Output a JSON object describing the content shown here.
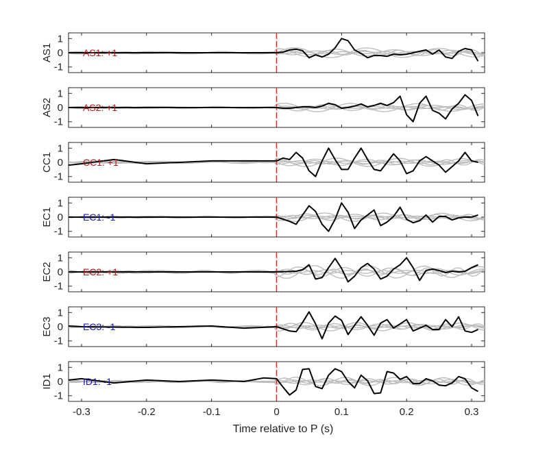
{
  "chart_data": {
    "type": "line",
    "xlabel": "Time relative to P (s)",
    "xlim": [
      -0.32,
      0.32
    ],
    "xticks": [
      -0.3,
      -0.2,
      -0.1,
      0,
      0.1,
      0.2,
      0.3
    ],
    "xtick_labels": [
      "-0.3",
      "-0.2",
      "-0.1",
      "0",
      "0.1",
      "0.2",
      "0.3"
    ],
    "ylim": [
      -1.4,
      1.4
    ],
    "yticks": [
      -1,
      0,
      1
    ],
    "ytick_labels": [
      "-1",
      "0",
      "1"
    ],
    "marker_time": 0,
    "colors": {
      "trace": "#000000",
      "background_traces": "#bdbdbd",
      "marker": "#e8281e",
      "positive": "#b2191b",
      "negative": "#1a1aa8",
      "axes": "#262626"
    },
    "panels": [
      {
        "station": "AS1",
        "annotation": "AS1: +1",
        "polarity": "positive",
        "x": [
          -0.32,
          0.0,
          0.01,
          0.02,
          0.03,
          0.04,
          0.05,
          0.06,
          0.07,
          0.08,
          0.09,
          0.1,
          0.11,
          0.12,
          0.13,
          0.14,
          0.15,
          0.16,
          0.17,
          0.18,
          0.19,
          0.2,
          0.21,
          0.22,
          0.23,
          0.24,
          0.25,
          0.26,
          0.27,
          0.28,
          0.29,
          0.3,
          0.31
        ],
        "y": [
          0.0,
          0.0,
          0.05,
          0.2,
          0.25,
          0.15,
          -0.35,
          -0.15,
          -0.3,
          -0.1,
          0.35,
          1.0,
          0.85,
          0.2,
          -0.05,
          -0.35,
          -0.2,
          -0.2,
          -0.25,
          -0.1,
          -0.15,
          -0.1,
          0.0,
          0.1,
          0.2,
          -0.1,
          0.2,
          -0.3,
          -0.4,
          0.1,
          0.3,
          0.2,
          -0.6
        ],
        "bg_amplitude": 0.35
      },
      {
        "station": "AS2",
        "annotation": "AS2: +1",
        "polarity": "positive",
        "x": [
          -0.32,
          0.0,
          0.01,
          0.02,
          0.03,
          0.04,
          0.05,
          0.06,
          0.07,
          0.08,
          0.09,
          0.1,
          0.11,
          0.12,
          0.13,
          0.14,
          0.15,
          0.16,
          0.17,
          0.18,
          0.19,
          0.2,
          0.21,
          0.22,
          0.23,
          0.24,
          0.25,
          0.26,
          0.27,
          0.28,
          0.29,
          0.3,
          0.31
        ],
        "y": [
          0.0,
          0.0,
          -0.05,
          -0.05,
          0.0,
          0.05,
          0.05,
          0.0,
          0.1,
          0.3,
          0.2,
          -0.05,
          0.0,
          0.1,
          0.25,
          0.05,
          0.15,
          0.3,
          0.15,
          0.35,
          0.8,
          -0.5,
          -1.0,
          0.3,
          0.8,
          -0.2,
          -0.4,
          -0.8,
          -0.1,
          0.3,
          0.9,
          0.5,
          -0.6
        ],
        "bg_amplitude": 0.3
      },
      {
        "station": "CC1",
        "annotation": "CC1: +1",
        "polarity": "positive",
        "x": [
          -0.32,
          -0.3,
          -0.25,
          -0.2,
          -0.1,
          0.0,
          0.01,
          0.02,
          0.03,
          0.04,
          0.05,
          0.06,
          0.07,
          0.08,
          0.09,
          0.1,
          0.11,
          0.12,
          0.13,
          0.14,
          0.15,
          0.16,
          0.17,
          0.18,
          0.19,
          0.2,
          0.21,
          0.22,
          0.23,
          0.24,
          0.25,
          0.26,
          0.27,
          0.28,
          0.29,
          0.3,
          0.31
        ],
        "y": [
          -0.2,
          -0.1,
          0.2,
          -0.1,
          0.1,
          0.1,
          0.3,
          0.2,
          0.7,
          0.3,
          -0.6,
          -1.0,
          0.1,
          1.0,
          0.2,
          -0.5,
          -0.5,
          0.3,
          1.0,
          0.2,
          -0.5,
          -0.6,
          0.0,
          0.6,
          0.1,
          -0.8,
          -0.6,
          0.1,
          0.4,
          0.1,
          -0.2,
          -0.7,
          -0.3,
          0.1,
          0.7,
          0.1,
          0.0
        ],
        "bg_amplitude": 0.3
      },
      {
        "station": "EC1",
        "annotation": "EC1: -1",
        "polarity": "negative",
        "x": [
          -0.32,
          0.0,
          0.01,
          0.02,
          0.03,
          0.04,
          0.05,
          0.06,
          0.07,
          0.08,
          0.09,
          0.1,
          0.11,
          0.12,
          0.13,
          0.14,
          0.15,
          0.16,
          0.17,
          0.18,
          0.19,
          0.2,
          0.21,
          0.22,
          0.23,
          0.24,
          0.25,
          0.26,
          0.27,
          0.28,
          0.29,
          0.3,
          0.31
        ],
        "y": [
          0.0,
          0.0,
          -0.15,
          -0.3,
          -0.5,
          0.15,
          0.8,
          0.4,
          -0.5,
          -1.0,
          -0.15,
          1.0,
          0.35,
          -0.8,
          -0.2,
          0.15,
          0.5,
          -0.6,
          -0.35,
          0.05,
          0.7,
          -0.15,
          -0.4,
          -0.25,
          0.15,
          -0.35,
          0.05,
          0.05,
          -0.2,
          -0.05,
          0.0,
          0.0,
          0.15
        ],
        "bg_amplitude": 0.3
      },
      {
        "station": "EC2",
        "annotation": "EC2: +1",
        "polarity": "positive",
        "x": [
          -0.32,
          0.0,
          0.03,
          0.04,
          0.05,
          0.06,
          0.07,
          0.08,
          0.09,
          0.1,
          0.11,
          0.12,
          0.13,
          0.14,
          0.15,
          0.16,
          0.17,
          0.18,
          0.19,
          0.2,
          0.21,
          0.22,
          0.23,
          0.24,
          0.25,
          0.26,
          0.27,
          0.28,
          0.29,
          0.3,
          0.31
        ],
        "y": [
          0.0,
          0.0,
          0.05,
          0.15,
          0.5,
          -0.5,
          -0.4,
          0.3,
          0.95,
          0.25,
          -0.7,
          -0.3,
          0.3,
          0.6,
          0.2,
          -0.5,
          -0.3,
          0.2,
          0.5,
          1.0,
          0.3,
          -0.6,
          0.1,
          0.2,
          0.1,
          -0.05,
          0.05,
          0.0,
          0.05,
          0.3,
          0.5
        ],
        "bg_amplitude": 0.45
      },
      {
        "station": "EC3",
        "annotation": "EC3: -1",
        "polarity": "negative",
        "x": [
          -0.32,
          -0.3,
          -0.2,
          -0.1,
          -0.05,
          0.0,
          0.02,
          0.03,
          0.04,
          0.05,
          0.06,
          0.07,
          0.08,
          0.09,
          0.1,
          0.11,
          0.12,
          0.13,
          0.14,
          0.15,
          0.16,
          0.17,
          0.18,
          0.19,
          0.2,
          0.21,
          0.22,
          0.23,
          0.24,
          0.25,
          0.26,
          0.27,
          0.28,
          0.29,
          0.3,
          0.31
        ],
        "y": [
          0.05,
          0.0,
          -0.05,
          0.05,
          -0.1,
          0.0,
          -0.3,
          -0.35,
          0.3,
          1.05,
          0.2,
          -0.85,
          0.25,
          0.75,
          0.45,
          -0.55,
          0.1,
          0.7,
          0.1,
          -0.6,
          0.25,
          0.5,
          -0.1,
          0.2,
          0.5,
          -0.3,
          -0.1,
          0.1,
          -0.2,
          -0.2,
          0.5,
          0.0,
          0.7,
          -0.3,
          -0.4,
          -0.2
        ],
        "bg_amplitude": 0.3
      },
      {
        "station": "ID1",
        "annotation": "ID1: -1",
        "polarity": "negative",
        "x": [
          -0.32,
          -0.3,
          -0.25,
          -0.2,
          -0.15,
          -0.1,
          -0.05,
          -0.02,
          0.0,
          0.01,
          0.02,
          0.03,
          0.04,
          0.05,
          0.06,
          0.07,
          0.08,
          0.09,
          0.1,
          0.11,
          0.12,
          0.13,
          0.14,
          0.15,
          0.16,
          0.17,
          0.18,
          0.19,
          0.2,
          0.21,
          0.22,
          0.23,
          0.24,
          0.25,
          0.26,
          0.27,
          0.28,
          0.29,
          0.3,
          0.31
        ],
        "y": [
          0.1,
          0.2,
          -0.1,
          0.1,
          0.0,
          0.1,
          0.0,
          0.25,
          0.2,
          -0.4,
          -0.95,
          -0.6,
          0.85,
          0.9,
          -0.35,
          -0.5,
          0.45,
          0.9,
          0.7,
          0.0,
          -0.45,
          0.45,
          0.05,
          -0.85,
          -0.8,
          0.7,
          0.6,
          0.15,
          0.35,
          -0.15,
          -0.15,
          0.2,
          0.05,
          -0.25,
          -0.3,
          -0.1,
          0.35,
          0.2,
          -0.45,
          -0.7
        ],
        "bg_amplitude": 0.3
      }
    ]
  }
}
